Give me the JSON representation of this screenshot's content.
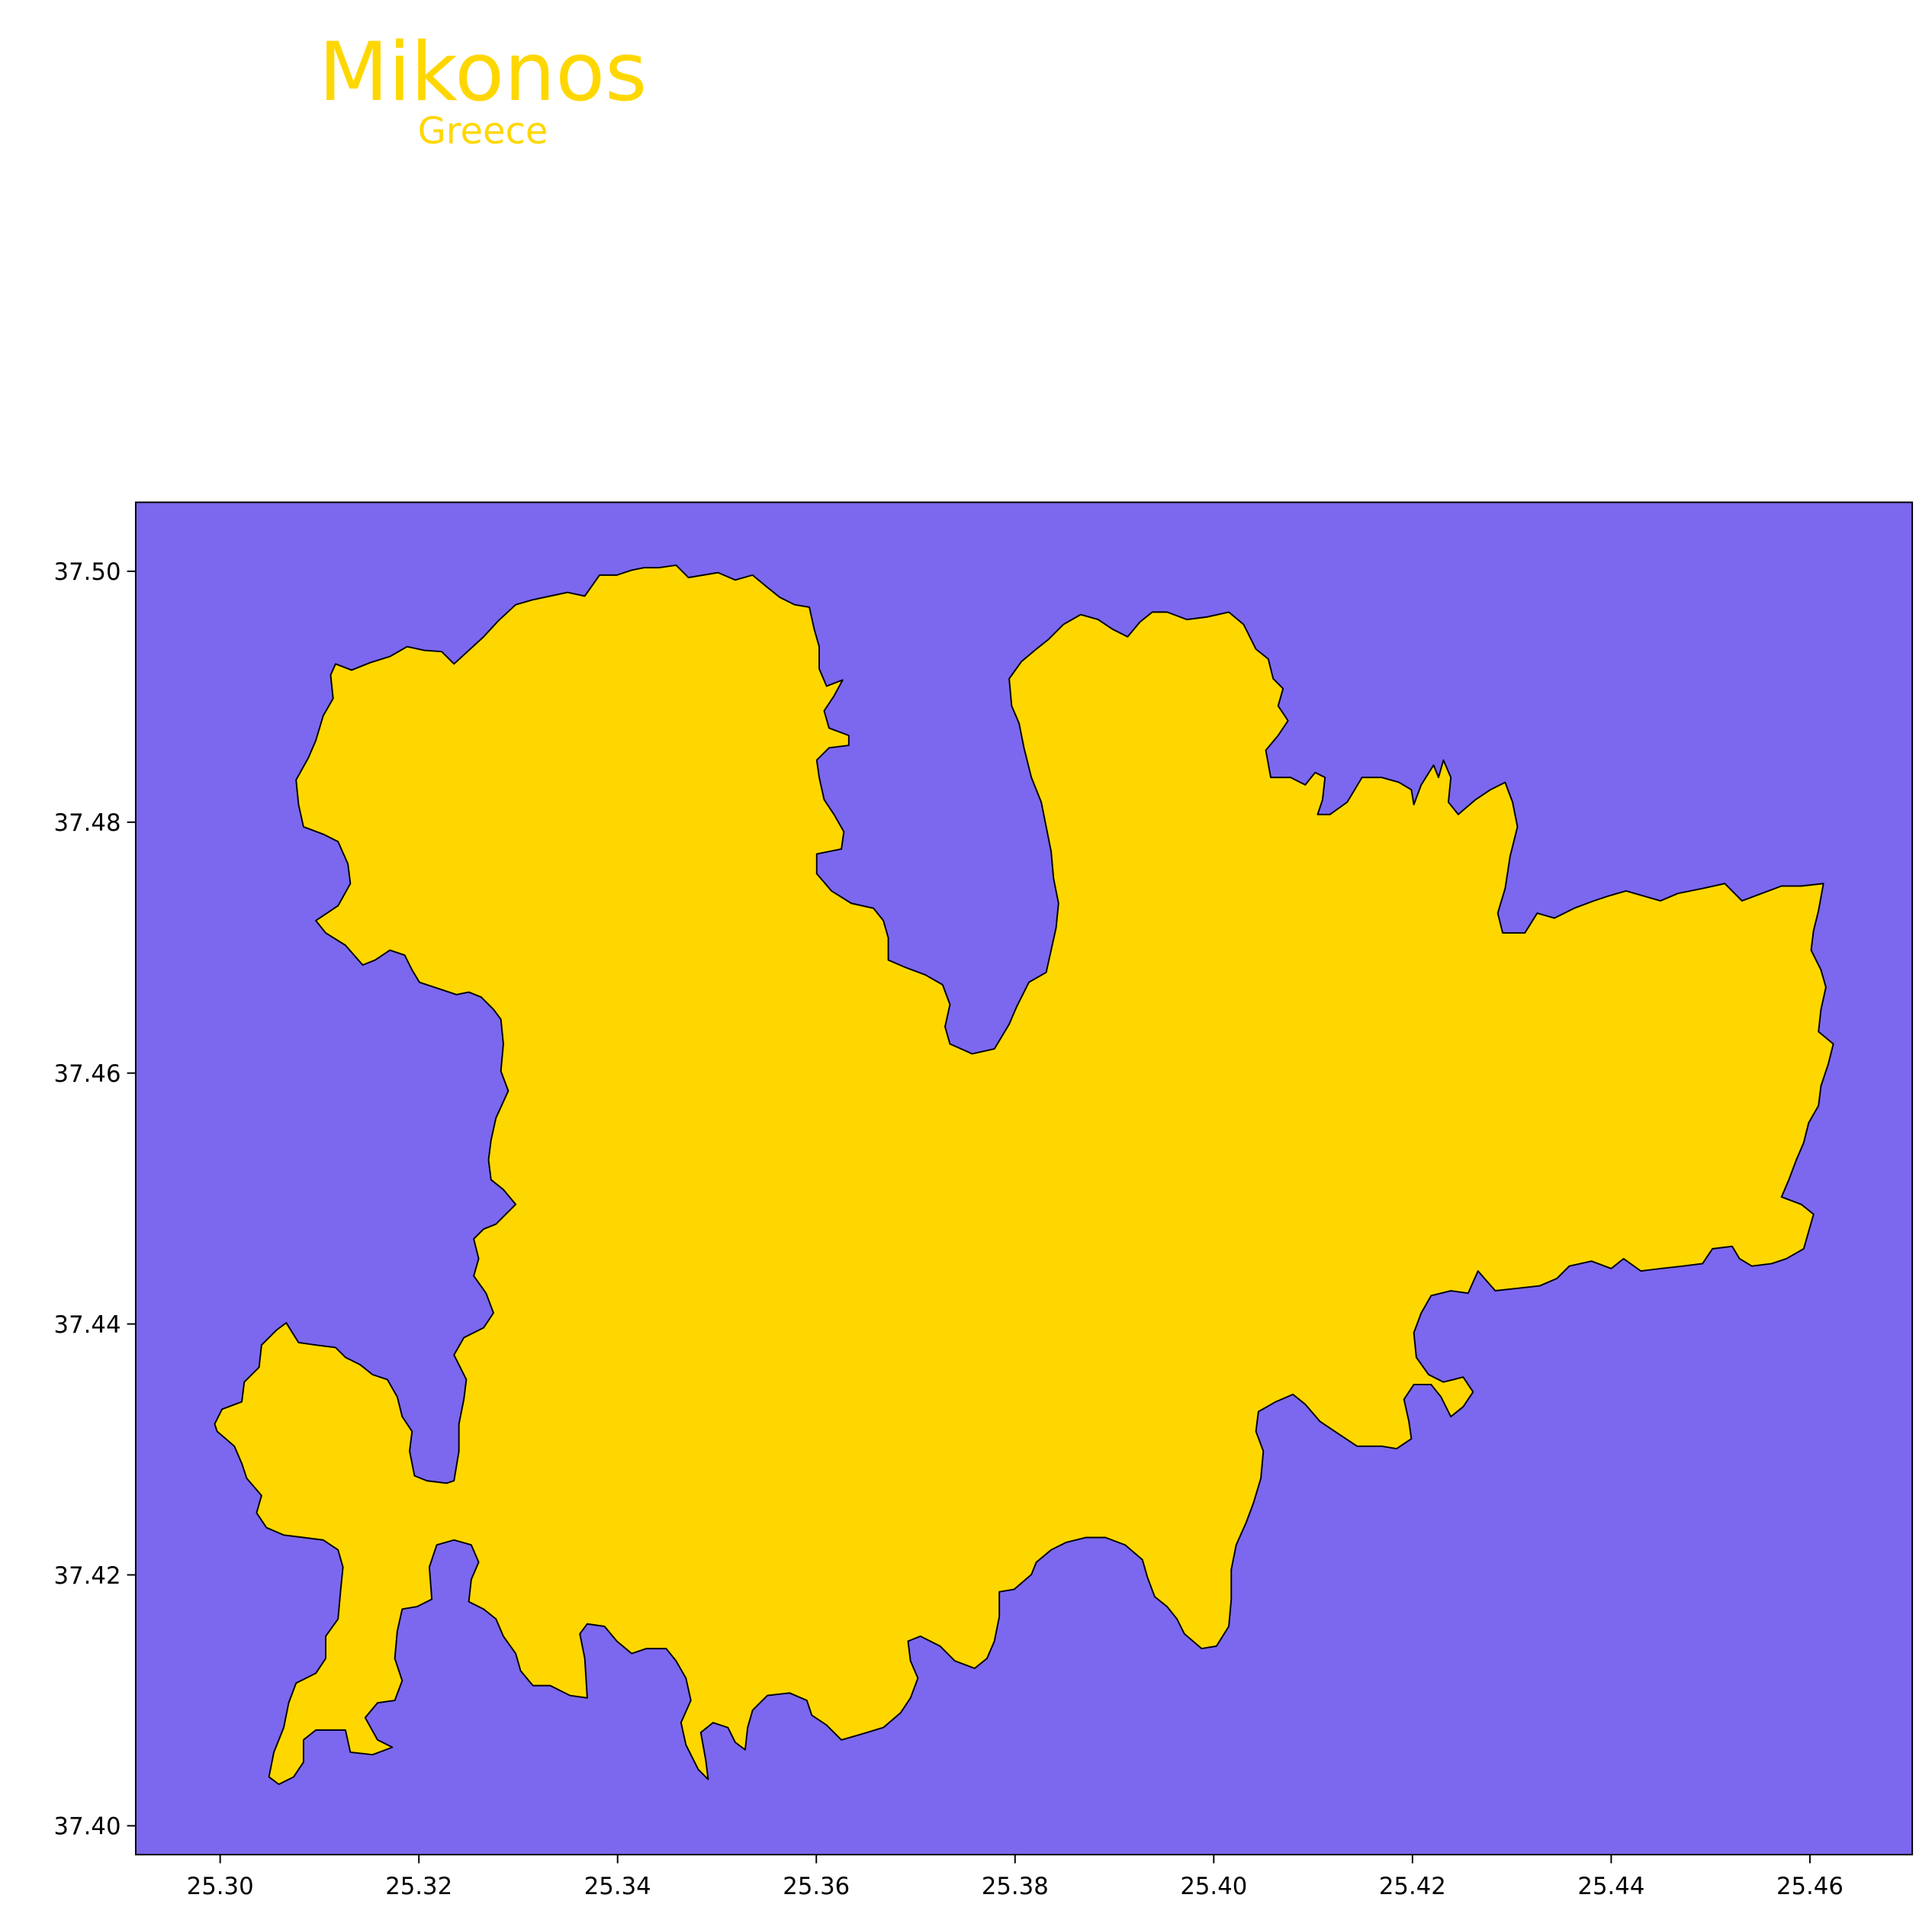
{
  "title": "Mikonos",
  "subtitle": "Greece",
  "colors": {
    "sea": "#7B68EE",
    "land": "#FFD700",
    "coastline": "#000000",
    "title": "#FFD700"
  },
  "map": {
    "x_ticks": [
      "25.30",
      "25.32",
      "25.34",
      "25.36",
      "25.38",
      "25.40",
      "25.42",
      "25.44",
      "25.46"
    ],
    "y_ticks": [
      "37.40",
      "37.42",
      "37.44",
      "37.46",
      "37.48",
      "37.50"
    ],
    "x_range": [
      25.2915,
      25.4703
    ],
    "y_range": [
      37.3977,
      37.5055
    ]
  }
}
